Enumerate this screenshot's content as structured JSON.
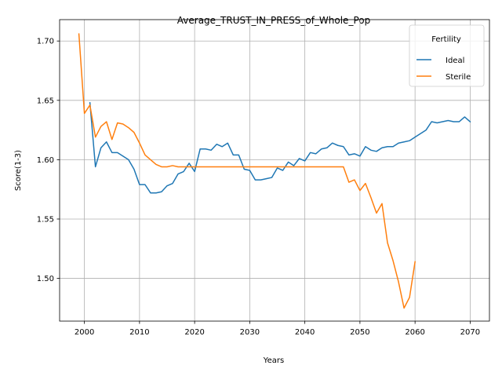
{
  "chart_data": {
    "type": "line",
    "title": "Average_TRUST_IN_PRESS_of_Whole_Pop",
    "xlabel": "Years",
    "ylabel": "Score(1-3)",
    "xlim": [
      1995.5,
      2073.5
    ],
    "ylim": [
      1.464,
      1.718
    ],
    "x_ticks": [
      2000,
      2010,
      2020,
      2030,
      2040,
      2050,
      2060,
      2070
    ],
    "x_tick_labels": [
      "2000",
      "2010",
      "2020",
      "2030",
      "2040",
      "2050",
      "2060",
      "2070"
    ],
    "y_ticks": [
      1.5,
      1.55,
      1.6,
      1.65,
      1.7
    ],
    "y_tick_labels": [
      "1.50",
      "1.55",
      "1.60",
      "1.65",
      "1.70"
    ],
    "grid": true,
    "legend": {
      "title": "Fertility",
      "placement": "top-right"
    },
    "series": [
      {
        "name": "Ideal",
        "color": "#1f77b4",
        "x": [
          2001,
          2002,
          2003,
          2004,
          2005,
          2006,
          2007,
          2008,
          2009,
          2010,
          2011,
          2012,
          2013,
          2014,
          2015,
          2016,
          2017,
          2018,
          2019,
          2020,
          2021,
          2022,
          2023,
          2024,
          2025,
          2026,
          2027,
          2028,
          2029,
          2030,
          2031,
          2032,
          2033,
          2034,
          2035,
          2036,
          2037,
          2038,
          2039,
          2040,
          2041,
          2042,
          2043,
          2044,
          2045,
          2046,
          2047,
          2048,
          2049,
          2050,
          2051,
          2052,
          2053,
          2054,
          2055,
          2056,
          2057,
          2058,
          2059,
          2060,
          2061,
          2062,
          2063,
          2064,
          2065,
          2066,
          2067,
          2068,
          2069,
          2070
        ],
        "values": [
          1.648,
          1.594,
          1.61,
          1.615,
          1.606,
          1.606,
          1.603,
          1.6,
          1.592,
          1.579,
          1.579,
          1.572,
          1.572,
          1.573,
          1.578,
          1.58,
          1.588,
          1.59,
          1.597,
          1.59,
          1.609,
          1.609,
          1.608,
          1.613,
          1.611,
          1.614,
          1.604,
          1.604,
          1.592,
          1.591,
          1.583,
          1.583,
          1.584,
          1.585,
          1.593,
          1.591,
          1.598,
          1.595,
          1.601,
          1.599,
          1.606,
          1.605,
          1.609,
          1.61,
          1.614,
          1.612,
          1.611,
          1.604,
          1.605,
          1.603,
          1.611,
          1.608,
          1.607,
          1.61,
          1.611,
          1.611,
          1.614,
          1.615,
          1.616,
          1.619,
          1.622,
          1.625,
          1.632,
          1.631,
          1.632,
          1.633,
          1.632,
          1.632,
          1.636,
          1.632
        ]
      },
      {
        "name": "Sterile",
        "color": "#ff7f0e",
        "x": [
          1999,
          2000,
          2001,
          2002,
          2003,
          2004,
          2005,
          2006,
          2007,
          2008,
          2009,
          2010,
          2011,
          2012,
          2013,
          2014,
          2015,
          2016,
          2017,
          2018,
          2019,
          2020,
          2021,
          2022,
          2023,
          2024,
          2025,
          2026,
          2027,
          2028,
          2029,
          2030,
          2031,
          2032,
          2033,
          2034,
          2035,
          2036,
          2037,
          2038,
          2039,
          2040,
          2041,
          2042,
          2043,
          2044,
          2045,
          2046,
          2047,
          2048,
          2049,
          2050,
          2051,
          2052,
          2053,
          2054,
          2055,
          2056,
          2057,
          2058,
          2059,
          2060
        ],
        "values": [
          1.706,
          1.639,
          1.646,
          1.619,
          1.628,
          1.632,
          1.617,
          1.631,
          1.63,
          1.627,
          1.623,
          1.614,
          1.604,
          1.6,
          1.596,
          1.594,
          1.594,
          1.595,
          1.594,
          1.594,
          1.594,
          1.594,
          1.594,
          1.594,
          1.594,
          1.594,
          1.594,
          1.594,
          1.594,
          1.594,
          1.594,
          1.594,
          1.594,
          1.594,
          1.594,
          1.594,
          1.594,
          1.594,
          1.594,
          1.594,
          1.594,
          1.594,
          1.594,
          1.594,
          1.594,
          1.594,
          1.594,
          1.594,
          1.594,
          1.581,
          1.583,
          1.574,
          1.58,
          1.568,
          1.555,
          1.563,
          1.53,
          1.515,
          1.497,
          1.475,
          1.484,
          1.514
        ]
      }
    ]
  }
}
